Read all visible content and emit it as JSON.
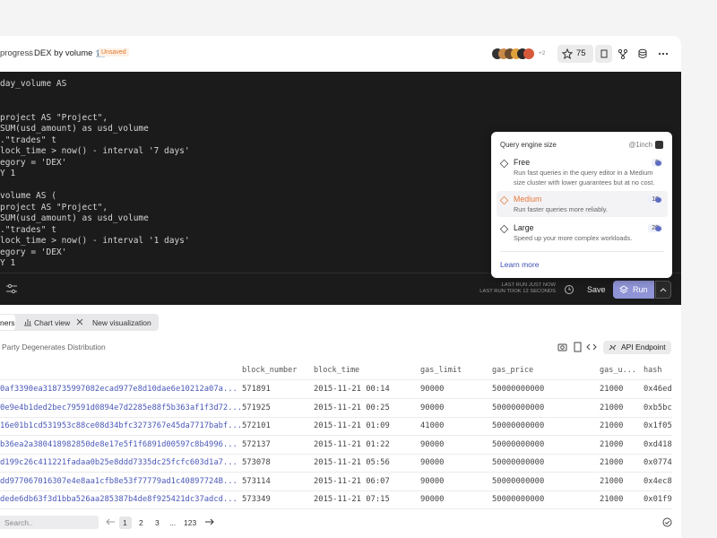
{
  "header": {
    "breadcrumb_prefix": "progress",
    "separator": "/",
    "title": "DEX by volume 🏦",
    "status": "Unsaved",
    "collaborators_extra": "+2",
    "stars": 75
  },
  "editor": {
    "lines": [
      "day_volume AS",
      null,
      null,
      "project AS \"Project\",",
      "SUM(usd_amount) as usd_volume",
      ".\"trades\" t",
      "lock_time > now() - interval '7 days'",
      "egory = 'DEX'",
      "Y 1",
      null,
      "volume AS (",
      "project AS \"Project\",",
      "SUM(usd_amount) as usd_volume",
      ".\"trades\" t",
      "lock_time > now() - interval '1 days'",
      "egory = 'DEX'",
      "Y 1"
    ],
    "last_run": "LAST RUN JUST NOW",
    "last_run_duration": "LAST RUN TOOK 12 SECONDS",
    "save": "Save",
    "run": "Run"
  },
  "engine_popup": {
    "title": "Query engine size",
    "team": "@1inch",
    "options": [
      {
        "name": "Free",
        "credits": 0,
        "description": "Run fast queries in the query editor in a Medium size cluster with lower guarantees but at no cost."
      },
      {
        "name": "Medium",
        "credits": 10,
        "description": "Run faster queries more reliably."
      },
      {
        "name": "Large",
        "credits": 20,
        "description": "Speed up your more complex workloads."
      }
    ],
    "learn_more": "Learn more"
  },
  "tabs": [
    "ners",
    "Chart view",
    "New visualization"
  ],
  "results": {
    "title": "Party Degenerates Distribution",
    "api_button": "API Endpoint",
    "columns": [
      "block_number",
      "block_time",
      "gas_limit",
      "gas_price",
      "gas_u...",
      "hash"
    ],
    "rows": [
      [
        "0af3390ea318735997082ecad977e8d10dae6e10212a07a...",
        571891,
        "2015-11-21 00:14",
        90000,
        50000000000,
        21000,
        "0x46ed"
      ],
      [
        "0e9e4b1ded2bec79591d0894e7d2285e88f5b363af1f3d72...",
        571925,
        "2015-11-21 00:25",
        90000,
        50000000000,
        21000,
        "0xb5bc"
      ],
      [
        "16e01b1cd531953c88ce08d34bfc3273767e45da7717babf...",
        572101,
        "2015-11-21 01:09",
        41000,
        50000000000,
        21000,
        "0x1f05"
      ],
      [
        "b36ea2a380418982850de8e17e5f1f6891d00597c8b4996...",
        572137,
        "2015-11-21 01:22",
        90000,
        50000000000,
        21000,
        "0xd418"
      ],
      [
        "d199c26c411221fadaa0b25e8ddd7335dc25fcfc603d1a7...",
        573078,
        "2015-11-21 05:56",
        90000,
        50000000000,
        21000,
        "0x0774"
      ],
      [
        "dd977067016307e4e8aa1cfb8e53f77779ad1c40897724B...",
        573114,
        "2015-11-21 06:07",
        90000,
        50000000000,
        21000,
        "0x4ec8"
      ],
      [
        "dede6db63f3d1bba526aa285387b4de8f925421dc37adcd...",
        573349,
        "2015-11-21 07:15",
        90000,
        50000000000,
        21000,
        "0x01f9"
      ]
    ]
  },
  "pagination": {
    "search_placeholder": "Search..",
    "pages": [
      1,
      2,
      3
    ],
    "ellipsis": "...",
    "last_page": 123
  }
}
